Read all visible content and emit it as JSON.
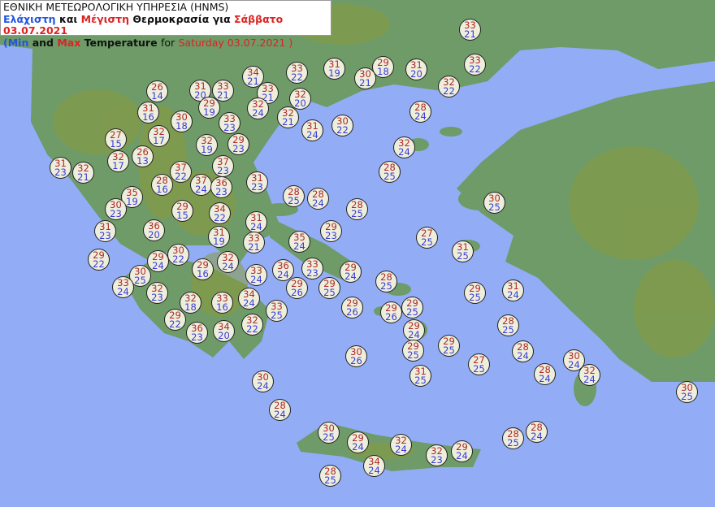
{
  "header": {
    "agency": "ΕΘΝΙΚΗ ΜΕΤΕΩΡΟΛΟΓΙΚΗ ΥΠΗΡΕΣΙΑ (HNMS)",
    "gr_min": "Ελάχιστη",
    "gr_and": "και",
    "gr_max": "Μέγιστη",
    "gr_temp": "Θερμοκρασία για",
    "gr_date": "Σάββατο 03.07.2021",
    "en_open": "(",
    "en_min": "Min",
    "en_and": "and",
    "en_max": "Max",
    "en_temp": "Temperature",
    "en_for": "for",
    "en_date": "Saturday 03.07.2021 )"
  },
  "colors": {
    "sea": "#92acf6",
    "land": "#6e9b68",
    "max_text": "#b02828",
    "min_text": "#3a3ad8"
  },
  "stations": [
    {
      "max": "33",
      "min": "21"
    },
    {
      "max": "33",
      "min": "22"
    },
    {
      "max": "31",
      "min": "19"
    },
    {
      "max": "29",
      "min": "18"
    },
    {
      "max": "31",
      "min": "20"
    },
    {
      "max": "30",
      "min": "21"
    },
    {
      "max": "33",
      "min": "22"
    },
    {
      "max": "34",
      "min": "21"
    },
    {
      "max": "32",
      "min": "22"
    },
    {
      "max": "26",
      "min": "14"
    },
    {
      "max": "31",
      "min": "20"
    },
    {
      "max": "33",
      "min": "21"
    },
    {
      "max": "33",
      "min": "21"
    },
    {
      "max": "32",
      "min": "24"
    },
    {
      "max": "32",
      "min": "20"
    },
    {
      "max": "31",
      "min": "16"
    },
    {
      "max": "29",
      "min": "19"
    },
    {
      "max": "32",
      "min": "21"
    },
    {
      "max": "30",
      "min": "18"
    },
    {
      "max": "33",
      "min": "23"
    },
    {
      "max": "31",
      "min": "24"
    },
    {
      "max": "30",
      "min": "22"
    },
    {
      "max": "28",
      "min": "24"
    },
    {
      "max": "27",
      "min": "15"
    },
    {
      "max": "32",
      "min": "17"
    },
    {
      "max": "32",
      "min": "19"
    },
    {
      "max": "29",
      "min": "23"
    },
    {
      "max": "32",
      "min": "24"
    },
    {
      "max": "31",
      "min": "23"
    },
    {
      "max": "32",
      "min": "21"
    },
    {
      "max": "32",
      "min": "17"
    },
    {
      "max": "26",
      "min": "13"
    },
    {
      "max": "37",
      "min": "22"
    },
    {
      "max": "37",
      "min": "23"
    },
    {
      "max": "28",
      "min": "25"
    },
    {
      "max": "31",
      "min": "23"
    },
    {
      "max": "28",
      "min": "16"
    },
    {
      "max": "37",
      "min": "24"
    },
    {
      "max": "36",
      "min": "23"
    },
    {
      "max": "28",
      "min": "25"
    },
    {
      "max": "28",
      "min": "24"
    },
    {
      "max": "35",
      "min": "19"
    },
    {
      "max": "30",
      "min": "23"
    },
    {
      "max": "28",
      "min": "25"
    },
    {
      "max": "29",
      "min": "15"
    },
    {
      "max": "34",
      "min": "22"
    },
    {
      "max": "31",
      "min": "24"
    },
    {
      "max": "29",
      "min": "23"
    },
    {
      "max": "31",
      "min": "23"
    },
    {
      "max": "36",
      "min": "20"
    },
    {
      "max": "30",
      "min": "25"
    },
    {
      "max": "27",
      "min": "25"
    },
    {
      "max": "31",
      "min": "19"
    },
    {
      "max": "33",
      "min": "21"
    },
    {
      "max": "35",
      "min": "24"
    },
    {
      "max": "31",
      "min": "25"
    },
    {
      "max": "29",
      "min": "22"
    },
    {
      "max": "29",
      "min": "24"
    },
    {
      "max": "30",
      "min": "22"
    },
    {
      "max": "29",
      "min": "16"
    },
    {
      "max": "32",
      "min": "24"
    },
    {
      "max": "30",
      "min": "25"
    },
    {
      "max": "33",
      "min": "24"
    },
    {
      "max": "36",
      "min": "24"
    },
    {
      "max": "33",
      "min": "23"
    },
    {
      "max": "29",
      "min": "24"
    },
    {
      "max": "33",
      "min": "24"
    },
    {
      "max": "32",
      "min": "23"
    },
    {
      "max": "29",
      "min": "26"
    },
    {
      "max": "29",
      "min": "25"
    },
    {
      "max": "28",
      "min": "25"
    },
    {
      "max": "29",
      "min": "25"
    },
    {
      "max": "31",
      "min": "24"
    },
    {
      "max": "34",
      "min": "24"
    },
    {
      "max": "32",
      "min": "18"
    },
    {
      "max": "33",
      "min": "16"
    },
    {
      "max": "29",
      "min": "26"
    },
    {
      "max": "29",
      "min": "26"
    },
    {
      "max": "29",
      "min": "25"
    },
    {
      "max": "33",
      "min": "25"
    },
    {
      "max": "29",
      "min": "22"
    },
    {
      "max": "36",
      "min": "23"
    },
    {
      "max": "34",
      "min": "20"
    },
    {
      "max": "32",
      "min": "22"
    },
    {
      "max": "29",
      "min": "24"
    },
    {
      "max": "28",
      "min": "25"
    },
    {
      "max": "29",
      "min": "25"
    },
    {
      "max": "29",
      "min": "25"
    },
    {
      "max": "30",
      "min": "26"
    },
    {
      "max": "28",
      "min": "24"
    },
    {
      "max": "27",
      "min": "25"
    },
    {
      "max": "30",
      "min": "24"
    },
    {
      "max": "31",
      "min": "25"
    },
    {
      "max": "28",
      "min": "24"
    },
    {
      "max": "32",
      "min": "24"
    },
    {
      "max": "30",
      "min": "24"
    },
    {
      "max": "30",
      "min": "25"
    },
    {
      "max": "28",
      "min": "24"
    },
    {
      "max": "30",
      "min": "25"
    },
    {
      "max": "29",
      "min": "24"
    },
    {
      "max": "32",
      "min": "24"
    },
    {
      "max": "32",
      "min": "23"
    },
    {
      "max": "29",
      "min": "24"
    },
    {
      "max": "28",
      "min": "25"
    },
    {
      "max": "28",
      "min": "24"
    },
    {
      "max": "34",
      "min": "24"
    },
    {
      "max": "28",
      "min": "25"
    }
  ]
}
